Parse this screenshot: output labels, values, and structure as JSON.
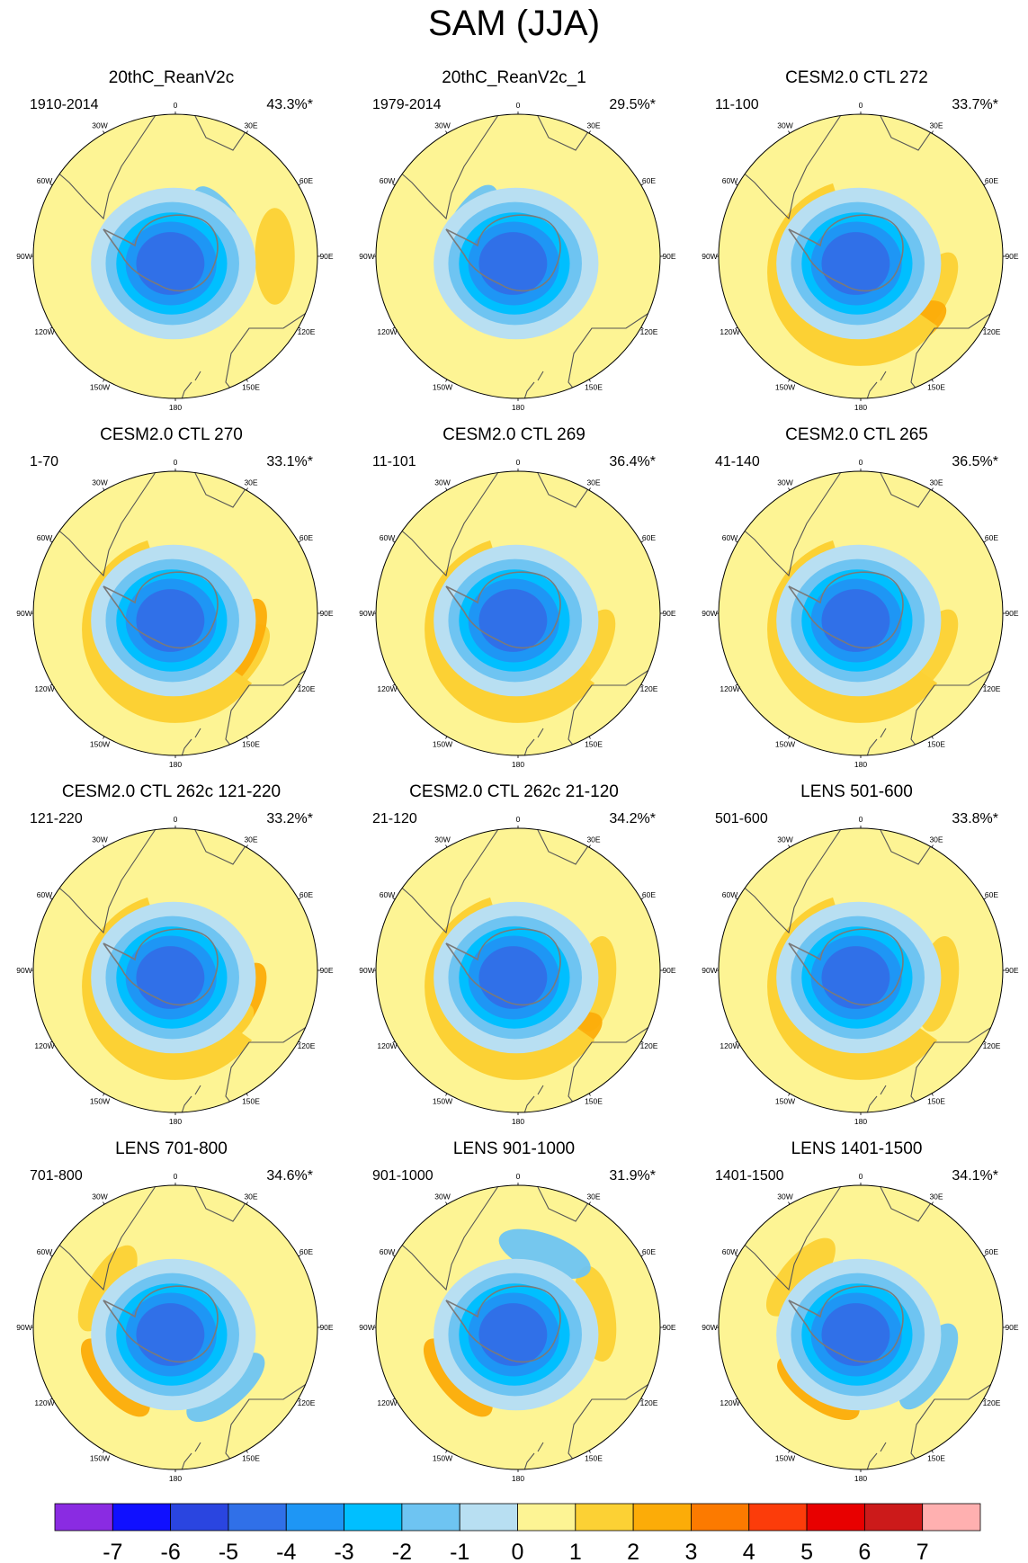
{
  "title": "SAM (JJA)",
  "chart_data": {
    "type": "heatmap",
    "projection": "south-polar-stereographic",
    "panels": [
      {
        "title": "20thC_ReanV2c",
        "period": "1910-2014",
        "variance": "43.3%*",
        "blobs": [
          {
            "v": 1.5,
            "r": 0.7,
            "a": 90
          },
          {
            "v": -1.5,
            "r": 0.38,
            "a": 60
          },
          {
            "v": -1.5,
            "r": 0.22,
            "a": 310
          },
          {
            "v": -2.5,
            "r": 0.4,
            "a": 180
          },
          {
            "v": -3.5,
            "r": 0.36,
            "a": 190
          }
        ],
        "gx": 0.0,
        "gy": 0.45,
        "ring": "light"
      },
      {
        "title": "20thC_ReanV2c_1",
        "period": "1979-2014",
        "variance": "29.5%*",
        "blobs": [
          {
            "v": -1.5,
            "r": 0.3,
            "a": 350
          },
          {
            "v": -1.5,
            "r": 0.4,
            "a": 300
          },
          {
            "v": -2.5,
            "r": 0.3,
            "a": 170
          },
          {
            "v": 1.5,
            "r": 0.1,
            "a": 135
          },
          {
            "v": 1.5,
            "r": 0.28,
            "a": 195
          }
        ],
        "gx": 0.0,
        "gy": 0.0,
        "ring": "none"
      },
      {
        "title": "CESM2.0 CTL 272",
        "period": "11-100",
        "variance": "33.7%*",
        "blobs": [
          {
            "v": 1.5,
            "r": 0.55,
            "a": 120
          },
          {
            "v": 2.5,
            "r": 0.6,
            "a": 150
          }
        ],
        "gx": 0.0,
        "gy": 0.0,
        "ring": "band"
      },
      {
        "title": "CESM2.0 CTL 270",
        "period": "1-70",
        "variance": "33.1%*",
        "blobs": [
          {
            "v": 1.5,
            "r": 0.55,
            "a": 130
          },
          {
            "v": 2.5,
            "r": 0.5,
            "a": 115
          }
        ],
        "gx": 0.0,
        "gy": 0.0,
        "ring": "band"
      },
      {
        "title": "CESM2.0 CTL 269",
        "period": "11-101",
        "variance": "36.4%*",
        "blobs": [
          {
            "v": 1.5,
            "r": 0.55,
            "a": 120
          },
          {
            "v": 1.5,
            "r": 0.55,
            "a": 160
          }
        ],
        "gx": 0.0,
        "gy": 0.0,
        "ring": "band"
      },
      {
        "title": "CESM2.0 CTL 265",
        "period": "41-140",
        "variance": "36.5%*",
        "blobs": [
          {
            "v": 1.5,
            "r": 0.55,
            "a": 120
          },
          {
            "v": 2.5,
            "r": 0.55,
            "a": 200
          }
        ],
        "gx": 0.0,
        "gy": 0.0,
        "ring": "band"
      },
      {
        "title": "CESM2.0 CTL 262c 121-220",
        "period": "121-220",
        "variance": "33.2%*",
        "blobs": [
          {
            "v": 2.5,
            "r": 0.5,
            "a": 120
          },
          {
            "v": 1.5,
            "r": 0.5,
            "a": 150
          }
        ],
        "gx": 0.0,
        "gy": 0.0,
        "ring": "band"
      },
      {
        "title": "CESM2.0 CTL 262c 21-120",
        "period": "21-120",
        "variance": "34.2%*",
        "blobs": [
          {
            "v": 1.5,
            "r": 0.55,
            "a": 100
          },
          {
            "v": 2.5,
            "r": 0.58,
            "a": 150
          }
        ],
        "gx": 0.0,
        "gy": 0.0,
        "ring": "band"
      },
      {
        "title": "LENS 501-600",
        "period": "501-600",
        "variance": "33.8%*",
        "blobs": [
          {
            "v": 1.5,
            "r": 0.55,
            "a": 100
          },
          {
            "v": 1.5,
            "r": 0.55,
            "a": 210
          }
        ],
        "gx": 0.0,
        "gy": 0.0,
        "ring": "band"
      },
      {
        "title": "LENS 701-800",
        "period": "701-800",
        "variance": "34.6%*",
        "blobs": [
          {
            "v": 1.5,
            "r": 0.55,
            "a": 300
          },
          {
            "v": 2.5,
            "r": 0.55,
            "a": 230
          },
          {
            "v": -1.5,
            "r": 0.55,
            "a": 140
          }
        ],
        "gx": 0.0,
        "gy": 0.0,
        "ring": "none"
      },
      {
        "title": "LENS 901-1000",
        "period": "901-1000",
        "variance": "31.9%*",
        "blobs": [
          {
            "v": 2.5,
            "r": 0.55,
            "a": 230
          },
          {
            "v": 1.5,
            "r": 0.55,
            "a": 80
          },
          {
            "v": -1.5,
            "r": 0.55,
            "a": 20
          }
        ],
        "gx": 0.0,
        "gy": 0.0,
        "ring": "none"
      },
      {
        "title": "LENS 1401-1500",
        "period": "1401-1500",
        "variance": "34.1%*",
        "blobs": [
          {
            "v": 1.5,
            "r": 0.55,
            "a": 310
          },
          {
            "v": 2.5,
            "r": 0.52,
            "a": 215
          },
          {
            "v": -1.5,
            "r": 0.55,
            "a": 120
          }
        ],
        "gx": 0.0,
        "gy": 0.0,
        "ring": "none"
      }
    ],
    "lon_labels": [
      "0",
      "30E",
      "60E",
      "90E",
      "120E",
      "150E",
      "180",
      "150W",
      "120W",
      "90W",
      "60W",
      "30W"
    ],
    "colorbar": {
      "labels": [
        "-7",
        "-6",
        "-5",
        "-4",
        "-3",
        "-2",
        "-1",
        "0",
        "1",
        "2",
        "3",
        "4",
        "5",
        "6",
        "7"
      ],
      "colors": [
        "#8a2be2",
        "#1010ff",
        "#2a45e0",
        "#3070e8",
        "#1e96f5",
        "#00bfff",
        "#6ec4f2",
        "#b8dff2",
        "#fdf494",
        "#fcd134",
        "#fcac08",
        "#fc7a00",
        "#fc3c0a",
        "#e80000",
        "#cc1a1a",
        "#ffb0b0"
      ]
    }
  }
}
